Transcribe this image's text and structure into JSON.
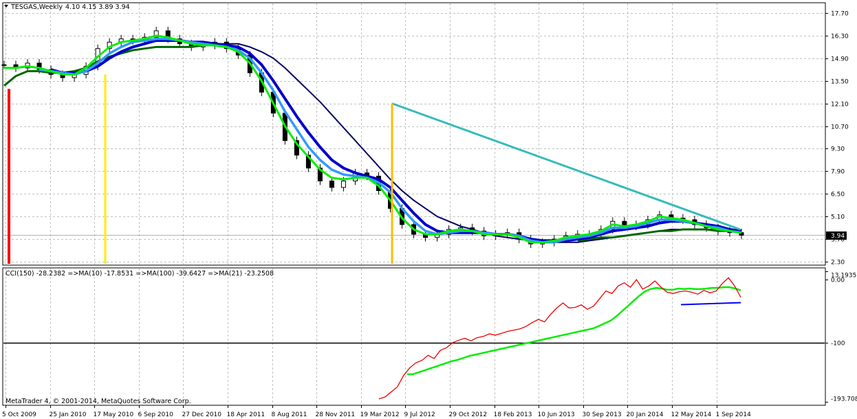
{
  "header": {
    "symbol_label": "TESGAS,Weekly",
    "ohlc_label": "4.10 4.15 3.89 3.94",
    "indicator_label": "CCI(150) -28.2382  =>MA(10) -17.8531  =>MA(100) -39.6427  =>MA(21) -23.2508"
  },
  "footer": {
    "copyright": "MetaTrader 4, © 2001-2014, MetaQuotes Software Corp."
  },
  "colors": {
    "background": "#ffffff",
    "grid": "#c0c0c0",
    "candle": "#000000",
    "ma_fast": "#00ee00",
    "ma_mid": "#3399ff",
    "ma_slow": "#0000cc",
    "ma_long": "#000066",
    "trend_teal": "#33bbbb",
    "ma_green_dark": "#006600",
    "cci": "#ee0000",
    "cci_ma": "#00ee00",
    "cci_level_line": "#000000",
    "blue_segment": "#0000ff",
    "marker_red": "#ff0000",
    "marker_yellow": "#ffee00",
    "marker_orange": "#ffbb00"
  },
  "chart_data": [
    {
      "type": "line",
      "panel": "price",
      "ylim": [
        2.3,
        17.7
      ],
      "yticks": [
        "17.70",
        "16.30",
        "14.90",
        "13.50",
        "12.10",
        "10.70",
        "9.30",
        "7.90",
        "6.50",
        "5.10",
        "3.70",
        "2.30"
      ],
      "xticks": [
        "5 Oct 2009",
        "25 Jan 2010",
        "17 May 2010",
        "6 Sep 2010",
        "27 Dec 2010",
        "18 Apr 2011",
        "8 Aug 2011",
        "28 Nov 2011",
        "19 Mar 2012",
        "9 Jul 2012",
        "29 Oct 2012",
        "18 Feb 2013",
        "10 Jun 2013",
        "30 Sep 2013",
        "20 Jan 2014",
        "12 May 2014",
        "1 Sep 2014"
      ],
      "current_price": "3.94",
      "series": [
        {
          "role": "price-close",
          "values": [
            14.5,
            14.3,
            14.6,
            14.2,
            13.9,
            13.7,
            13.9,
            14.4,
            15.5,
            15.9,
            16.1,
            16.0,
            16.2,
            16.6,
            16.1,
            15.8,
            15.6,
            15.7,
            15.9,
            15.5,
            15.1,
            14.0,
            12.8,
            11.5,
            9.8,
            8.9,
            8.1,
            7.3,
            6.9,
            7.3,
            7.8,
            7.6,
            6.7,
            5.6,
            4.6,
            4.0,
            3.8,
            4.0,
            4.3,
            4.4,
            4.2,
            3.9,
            4.0,
            4.1,
            3.7,
            3.4,
            3.5,
            3.7,
            3.9,
            4.0,
            4.0,
            4.3,
            4.8,
            4.5,
            4.6,
            4.9,
            5.2,
            5.0,
            4.9,
            4.6,
            4.4,
            4.2,
            4.1,
            3.94
          ]
        },
        {
          "role": "ma-fast",
          "values": [
            14.3,
            14.3,
            14.4,
            14.3,
            14.1,
            13.9,
            13.9,
            14.3,
            15.0,
            15.6,
            15.9,
            16.0,
            16.1,
            16.3,
            16.2,
            16.0,
            15.8,
            15.7,
            15.7,
            15.6,
            15.3,
            14.6,
            13.5,
            12.1,
            10.7,
            9.6,
            8.8,
            8.0,
            7.5,
            7.4,
            7.5,
            7.5,
            7.0,
            6.1,
            5.0,
            4.3,
            4.0,
            4.0,
            4.2,
            4.3,
            4.2,
            4.0,
            4.0,
            4.0,
            3.8,
            3.5,
            3.5,
            3.6,
            3.8,
            3.9,
            4.0,
            4.2,
            4.6,
            4.5,
            4.6,
            4.8,
            5.1,
            5.0,
            4.9,
            4.7,
            4.5,
            4.3,
            4.2,
            4.1
          ]
        },
        {
          "role": "ma-mid",
          "values": [
            null,
            null,
            null,
            14.2,
            14.1,
            14.0,
            13.9,
            14.1,
            14.6,
            15.2,
            15.6,
            15.9,
            16.0,
            16.1,
            16.1,
            16.0,
            15.9,
            15.8,
            15.7,
            15.6,
            15.4,
            14.9,
            14.0,
            12.9,
            11.6,
            10.5,
            9.4,
            8.6,
            8.0,
            7.7,
            7.6,
            7.5,
            7.2,
            6.6,
            5.6,
            4.8,
            4.2,
            4.0,
            4.1,
            4.2,
            4.2,
            4.1,
            4.0,
            4.0,
            3.9,
            3.6,
            3.5,
            3.5,
            3.7,
            3.8,
            3.9,
            4.1,
            4.4,
            4.4,
            4.5,
            4.7,
            4.9,
            4.9,
            4.8,
            4.7,
            4.5,
            4.4,
            4.2,
            4.1
          ]
        },
        {
          "role": "ma-slow",
          "values": [
            null,
            null,
            null,
            null,
            14.2,
            14.0,
            14.0,
            14.1,
            14.4,
            14.9,
            15.3,
            15.6,
            15.8,
            16.0,
            16.0,
            16.0,
            15.9,
            15.9,
            15.8,
            15.7,
            15.6,
            15.2,
            14.5,
            13.5,
            12.4,
            11.3,
            10.3,
            9.4,
            8.6,
            8.1,
            7.8,
            7.6,
            7.4,
            6.9,
            6.1,
            5.3,
            4.6,
            4.2,
            4.1,
            4.1,
            4.1,
            4.1,
            4.0,
            4.0,
            3.9,
            3.7,
            3.6,
            3.6,
            3.6,
            3.7,
            3.8,
            4.0,
            4.2,
            4.3,
            4.4,
            4.5,
            4.7,
            4.8,
            4.8,
            4.7,
            4.6,
            4.5,
            4.3,
            4.2
          ]
        },
        {
          "role": "ma-long",
          "values": [
            null,
            null,
            null,
            null,
            null,
            null,
            null,
            null,
            null,
            null,
            null,
            null,
            null,
            null,
            null,
            null,
            null,
            null,
            15.8,
            15.8,
            15.8,
            15.6,
            15.3,
            14.9,
            14.3,
            13.6,
            12.9,
            12.2,
            11.4,
            10.6,
            9.8,
            9.0,
            8.2,
            7.4,
            6.7,
            6.1,
            5.6,
            5.1,
            4.8,
            4.5,
            4.3,
            4.1,
            3.9,
            3.8,
            3.7,
            3.6,
            3.5,
            3.5,
            3.5,
            3.5,
            3.6,
            3.7,
            3.8,
            3.9,
            4.0,
            4.1,
            4.2,
            4.3,
            4.3,
            4.3,
            4.3,
            4.3,
            4.2,
            4.2
          ]
        },
        {
          "role": "ma-green-dark",
          "values": [
            13.2,
            13.8,
            14.1,
            14.1,
            14.0,
            14.0,
            14.1,
            14.3,
            14.7,
            15.0,
            15.2,
            15.4,
            15.5,
            15.6,
            15.6,
            15.6,
            15.6,
            15.7,
            null,
            null,
            null,
            null,
            null,
            null,
            null,
            null,
            null,
            null,
            null,
            null,
            null,
            null,
            null,
            null,
            null,
            null,
            null,
            null,
            null,
            null,
            null,
            null,
            null,
            null,
            null,
            null,
            null,
            null,
            null,
            3.6,
            3.7,
            3.8,
            3.8,
            3.9,
            4.0,
            4.1,
            4.2,
            4.2,
            4.3,
            4.3,
            4.3,
            4.2,
            4.2,
            4.1
          ]
        },
        {
          "role": "trend-line",
          "values": [
            12.1,
            4.3
          ]
        }
      ]
    },
    {
      "type": "line",
      "panel": "cci",
      "ylim": [
        -193.708,
        13.1935
      ],
      "yticks": [
        "13.1935",
        "0.00",
        "-100",
        "-193.708"
      ],
      "level": -100,
      "series": [
        {
          "role": "cci",
          "values": [
            -189,
            -186,
            -178,
            -170,
            -152,
            -140,
            -132,
            -128,
            -120,
            -125,
            -112,
            -108,
            -100,
            -96,
            -93,
            -97,
            -92,
            -90,
            -86,
            -88,
            -85,
            -82,
            -80,
            -78,
            -74,
            -68,
            -63,
            -67,
            -55,
            -45,
            -37,
            -45,
            -44,
            -40,
            -47,
            -42,
            -30,
            -18,
            -22,
            -10,
            -5,
            -12,
            0,
            -15,
            -10,
            -2,
            -12,
            -20,
            -22,
            -19,
            -18,
            -20,
            -23,
            -17,
            -21,
            -18,
            -6,
            3,
            -10,
            -28
          ]
        },
        {
          "role": "cci-ma",
          "values": [
            -150,
            -150,
            -147,
            -144,
            -141,
            -138,
            -135,
            -132,
            -129,
            -127,
            -124,
            -121,
            -119,
            -117,
            -115,
            -113,
            -111,
            -109,
            -107,
            -105,
            -103,
            -101,
            -99,
            -97,
            -95,
            -93,
            -91,
            -89,
            -87,
            -85,
            -83,
            -81,
            -79,
            -77,
            -73,
            -69,
            -65,
            -58,
            -50,
            -42,
            -34,
            -26,
            -19,
            -15,
            -13,
            -14,
            -16,
            -16,
            -14,
            -15,
            -14,
            -15,
            -15,
            -14,
            -13,
            -13,
            -12,
            -12,
            -14,
            -17
          ]
        },
        {
          "role": "blue-segment",
          "values": [
            -39.6,
            -36.5
          ]
        }
      ]
    }
  ]
}
